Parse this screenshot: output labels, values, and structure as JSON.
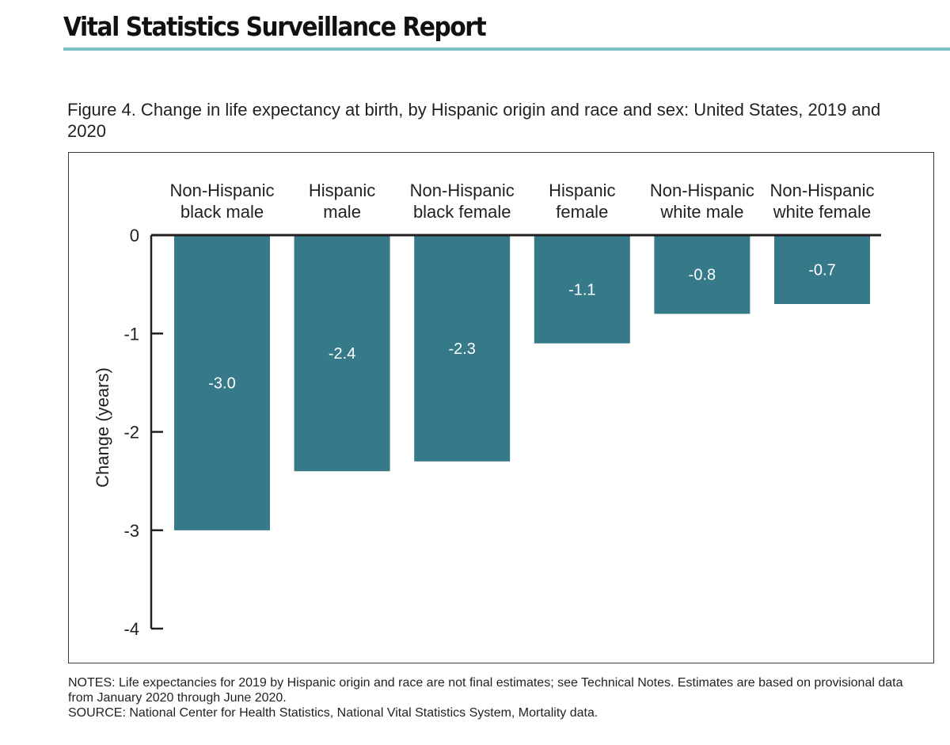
{
  "header": {
    "report_title": "Vital Statistics Surveillance Report"
  },
  "colors": {
    "accent_rule": "#7cc3c6",
    "bar": "#367a8a",
    "bar_label": "#ffffff",
    "axis": "#231f20"
  },
  "chart_data": {
    "type": "bar",
    "title": "Figure 4. Change in life expectancy at birth, by Hispanic origin and race and sex: United States, 2019 and 2020",
    "categories": [
      [
        "Non-Hispanic",
        "black male"
      ],
      [
        "Hispanic",
        "male"
      ],
      [
        "Non-Hispanic",
        "black female"
      ],
      [
        "Hispanic",
        "female"
      ],
      [
        "Non-Hispanic",
        "white male"
      ],
      [
        "Non-Hispanic",
        "white female"
      ]
    ],
    "values": [
      -3.0,
      -2.4,
      -2.3,
      -1.1,
      -0.8,
      -0.7
    ],
    "data_labels": [
      "-3.0",
      "-2.4",
      "-2.3",
      "-1.1",
      "-0.8",
      "-0.7"
    ],
    "ylabel": "Change (years)",
    "xlabel": "",
    "ylim": [
      -4,
      0
    ],
    "yticks": [
      0,
      -1,
      -2,
      -3,
      -4
    ],
    "ytick_labels": [
      "0",
      "-1",
      "-2",
      "-3",
      "-4"
    ],
    "category_label_position": "top",
    "grid": false,
    "legend": "none"
  },
  "notes": {
    "notes_text": "NOTES: Life expectancies for 2019 by Hispanic origin and race are not final estimates; see Technical Notes. Estimates are based on provisional data from January 2020 through June 2020.",
    "source_text": "SOURCE: National Center for Health Statistics, National Vital Statistics System, Mortality data."
  }
}
